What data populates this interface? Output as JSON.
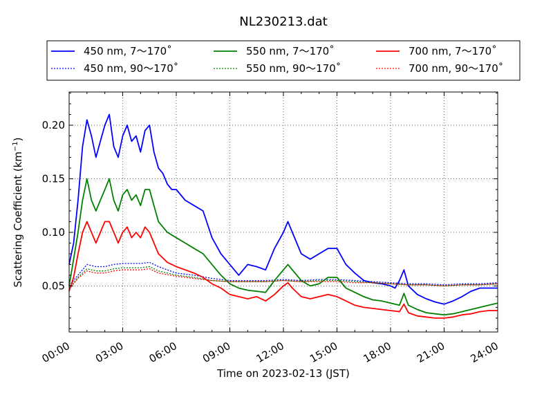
{
  "chart_data": {
    "type": "line",
    "title": "NL230213.dat",
    "xlabel": "Time on 2023-02-13 (JST)",
    "ylabel": "Scattering Coefficient (km",
    "ylabel_sup": "−1",
    "ylabel_end": ")",
    "xlim": [
      0,
      24
    ],
    "ylim": [
      0.007,
      0.231
    ],
    "x_ticks": [
      0,
      3,
      6,
      9,
      12,
      15,
      18,
      21,
      24
    ],
    "x_tick_labels": [
      "00:00",
      "03:00",
      "06:00",
      "09:00",
      "12:00",
      "15:00",
      "18:00",
      "21:00",
      "24:00"
    ],
    "y_ticks": [
      0.05,
      0.1,
      0.15,
      0.2
    ],
    "y_tick_labels": [
      "0.05",
      "0.10",
      "0.15",
      "0.20"
    ],
    "grid": true,
    "legend_position": "top-center",
    "series": [
      {
        "name": "450 nm, 7～170˚",
        "color": "#0000ff",
        "style": "solid",
        "x": [
          0,
          0.25,
          0.5,
          0.75,
          1,
          1.25,
          1.5,
          1.75,
          2,
          2.25,
          2.5,
          2.75,
          3,
          3.25,
          3.5,
          3.75,
          4,
          4.25,
          4.5,
          4.75,
          5,
          5.25,
          5.5,
          5.75,
          6,
          6.5,
          7,
          7.5,
          8,
          8.5,
          9,
          9.5,
          10,
          10.5,
          11,
          11.5,
          12,
          12.25,
          12.5,
          13,
          13.5,
          14,
          14.5,
          15,
          15.5,
          16,
          16.5,
          17,
          17.5,
          18,
          18.25,
          18.5,
          18.75,
          19,
          19.5,
          20,
          20.5,
          21,
          21.5,
          22,
          22.5,
          23,
          23.5,
          24
        ],
        "y": [
          0.07,
          0.09,
          0.13,
          0.18,
          0.205,
          0.19,
          0.17,
          0.185,
          0.2,
          0.21,
          0.18,
          0.17,
          0.19,
          0.2,
          0.185,
          0.19,
          0.175,
          0.195,
          0.2,
          0.175,
          0.16,
          0.155,
          0.145,
          0.14,
          0.14,
          0.13,
          0.125,
          0.12,
          0.095,
          0.08,
          0.07,
          0.06,
          0.07,
          0.068,
          0.065,
          0.085,
          0.1,
          0.11,
          0.1,
          0.08,
          0.075,
          0.08,
          0.085,
          0.085,
          0.07,
          0.062,
          0.055,
          0.053,
          0.052,
          0.05,
          0.048,
          0.055,
          0.065,
          0.05,
          0.042,
          0.038,
          0.035,
          0.033,
          0.036,
          0.04,
          0.045,
          0.048,
          0.048,
          0.048
        ]
      },
      {
        "name": "450 nm, 90～170˚",
        "color": "#0000ff",
        "style": "dotted",
        "x": [
          0,
          0.5,
          1,
          1.5,
          2,
          2.5,
          3,
          3.5,
          4,
          4.5,
          5,
          6,
          7,
          8,
          9,
          10,
          11,
          12,
          13,
          14,
          15,
          16,
          17,
          18,
          19,
          20,
          21,
          22,
          23,
          24
        ],
        "y": [
          0.05,
          0.06,
          0.07,
          0.068,
          0.068,
          0.07,
          0.071,
          0.071,
          0.071,
          0.072,
          0.068,
          0.062,
          0.06,
          0.057,
          0.055,
          0.055,
          0.055,
          0.056,
          0.055,
          0.056,
          0.056,
          0.055,
          0.054,
          0.053,
          0.052,
          0.052,
          0.051,
          0.052,
          0.052,
          0.053
        ]
      },
      {
        "name": "550 nm, 7～170˚",
        "color": "#008000",
        "style": "solid",
        "x": [
          0,
          0.25,
          0.5,
          0.75,
          1,
          1.25,
          1.5,
          1.75,
          2,
          2.25,
          2.5,
          2.75,
          3,
          3.25,
          3.5,
          3.75,
          4,
          4.25,
          4.5,
          4.75,
          5,
          5.5,
          6,
          6.5,
          7,
          7.5,
          8,
          8.5,
          9,
          9.5,
          10,
          10.5,
          11,
          11.5,
          12,
          12.25,
          12.5,
          13,
          13.5,
          14,
          14.5,
          15,
          15.5,
          16,
          16.5,
          17,
          17.5,
          18,
          18.5,
          18.75,
          19,
          19.5,
          20,
          20.5,
          21,
          21.5,
          22,
          22.5,
          23,
          23.5,
          24
        ],
        "y": [
          0.05,
          0.075,
          0.1,
          0.13,
          0.15,
          0.13,
          0.12,
          0.13,
          0.14,
          0.15,
          0.13,
          0.12,
          0.135,
          0.14,
          0.13,
          0.135,
          0.125,
          0.14,
          0.14,
          0.125,
          0.11,
          0.1,
          0.095,
          0.09,
          0.085,
          0.08,
          0.07,
          0.06,
          0.052,
          0.048,
          0.046,
          0.045,
          0.044,
          0.055,
          0.065,
          0.07,
          0.065,
          0.055,
          0.05,
          0.052,
          0.058,
          0.058,
          0.048,
          0.044,
          0.04,
          0.037,
          0.036,
          0.034,
          0.032,
          0.043,
          0.032,
          0.028,
          0.025,
          0.024,
          0.023,
          0.024,
          0.026,
          0.028,
          0.03,
          0.032,
          0.034
        ]
      },
      {
        "name": "550 nm, 90～170˚",
        "color": "#008000",
        "style": "dotted",
        "x": [
          0,
          0.5,
          1,
          1.5,
          2,
          2.5,
          3,
          3.5,
          4,
          4.5,
          5,
          6,
          7,
          8,
          9,
          10,
          11,
          12,
          13,
          14,
          15,
          16,
          17,
          18,
          19,
          20,
          21,
          22,
          23,
          24
        ],
        "y": [
          0.048,
          0.058,
          0.066,
          0.064,
          0.064,
          0.066,
          0.067,
          0.067,
          0.067,
          0.068,
          0.064,
          0.06,
          0.058,
          0.055,
          0.054,
          0.054,
          0.054,
          0.055,
          0.054,
          0.055,
          0.055,
          0.054,
          0.053,
          0.052,
          0.051,
          0.051,
          0.05,
          0.051,
          0.051,
          0.052
        ]
      },
      {
        "name": "700 nm, 7～170˚",
        "color": "#ff0000",
        "style": "solid",
        "x": [
          0,
          0.25,
          0.5,
          0.75,
          1,
          1.25,
          1.5,
          1.75,
          2,
          2.25,
          2.5,
          2.75,
          3,
          3.25,
          3.5,
          3.75,
          4,
          4.25,
          4.5,
          4.75,
          5,
          5.5,
          6,
          6.5,
          7,
          7.5,
          8,
          8.5,
          9,
          9.5,
          10,
          10.5,
          11,
          11.5,
          12,
          12.25,
          12.5,
          13,
          13.5,
          14,
          14.5,
          15,
          15.5,
          16,
          16.5,
          17,
          17.5,
          18,
          18.5,
          18.75,
          19,
          19.5,
          20,
          20.5,
          21,
          21.5,
          22,
          22.5,
          23,
          23.5,
          24
        ],
        "y": [
          0.045,
          0.058,
          0.08,
          0.1,
          0.11,
          0.1,
          0.09,
          0.1,
          0.11,
          0.11,
          0.1,
          0.09,
          0.1,
          0.105,
          0.095,
          0.1,
          0.095,
          0.105,
          0.1,
          0.09,
          0.08,
          0.072,
          0.068,
          0.065,
          0.062,
          0.058,
          0.052,
          0.048,
          0.042,
          0.04,
          0.038,
          0.04,
          0.036,
          0.042,
          0.05,
          0.053,
          0.048,
          0.04,
          0.038,
          0.04,
          0.042,
          0.04,
          0.036,
          0.032,
          0.03,
          0.029,
          0.028,
          0.027,
          0.026,
          0.033,
          0.025,
          0.022,
          0.021,
          0.02,
          0.02,
          0.021,
          0.023,
          0.024,
          0.026,
          0.027,
          0.027
        ]
      },
      {
        "name": "700 nm, 90～170˚",
        "color": "#ff0000",
        "style": "dotted",
        "x": [
          0,
          0.5,
          1,
          1.5,
          2,
          2.5,
          3,
          3.5,
          4,
          4.5,
          5,
          6,
          7,
          8,
          9,
          10,
          11,
          12,
          13,
          14,
          15,
          16,
          17,
          18,
          19,
          20,
          21,
          22,
          23,
          24
        ],
        "y": [
          0.047,
          0.057,
          0.064,
          0.062,
          0.062,
          0.064,
          0.065,
          0.065,
          0.065,
          0.066,
          0.062,
          0.059,
          0.057,
          0.055,
          0.054,
          0.054,
          0.054,
          0.055,
          0.054,
          0.054,
          0.054,
          0.053,
          0.053,
          0.052,
          0.051,
          0.051,
          0.05,
          0.051,
          0.051,
          0.052
        ]
      }
    ]
  }
}
